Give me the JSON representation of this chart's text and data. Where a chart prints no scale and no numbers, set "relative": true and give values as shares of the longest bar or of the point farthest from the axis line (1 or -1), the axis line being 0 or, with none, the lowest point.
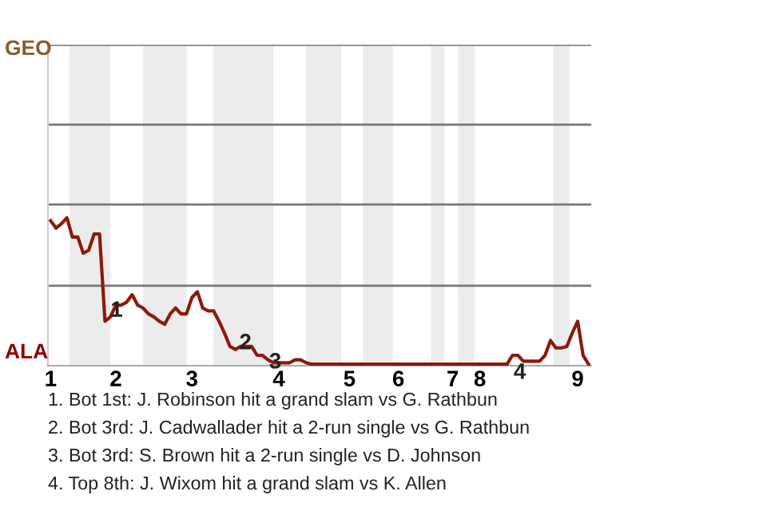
{
  "chart_data": {
    "type": "line",
    "relative": true,
    "categories": [
      "1",
      null,
      null,
      null,
      null,
      null,
      null,
      null,
      null,
      null,
      null,
      null,
      "2",
      null,
      null,
      null,
      null,
      null,
      null,
      null,
      null,
      null,
      null,
      null,
      null,
      null,
      "3",
      null,
      null,
      null,
      null,
      null,
      null,
      null,
      null,
      null,
      null,
      null,
      null,
      null,
      null,
      null,
      "4",
      null,
      null,
      null,
      null,
      null,
      null,
      null,
      null,
      null,
      null,
      null,
      null,
      "5",
      null,
      null,
      null,
      null,
      null,
      null,
      null,
      null,
      "6",
      null,
      null,
      null,
      null,
      null,
      null,
      null,
      null,
      null,
      "7",
      null,
      null,
      null,
      null,
      "8",
      null,
      null,
      null,
      null,
      null,
      null,
      null,
      null,
      null,
      null,
      null,
      null,
      null,
      null,
      null,
      null,
      null,
      "9",
      null,
      null
    ],
    "marker": "none",
    "line_style": "solid",
    "ref_lines": [
      {
        "axis": "y",
        "value": 0.54,
        "color": "#777777"
      },
      {
        "axis": "y",
        "value": 1.09,
        "color": "#777777"
      },
      {
        "axis": "y",
        "value": 1.63,
        "color": "#777777"
      },
      {
        "axis": "y",
        "value": 2.17,
        "color": "#777777"
      }
    ],
    "series": [
      {
        "color": "#8b1a0a",
        "values": [
          0.98,
          0.93,
          0.96,
          1,
          0.87,
          0.87,
          0.76,
          0.78,
          0.89,
          0.89,
          0.3,
          0.33,
          0.41,
          0.41,
          0.43,
          0.48,
          0.41,
          0.39,
          0.35,
          0.33,
          0.3,
          0.28,
          0.35,
          0.39,
          0.35,
          0.35,
          0.46,
          0.5,
          0.39,
          0.37,
          0.37,
          0.3,
          0.22,
          0.13,
          0.11,
          0.13,
          0.13,
          0.13,
          0.07,
          0.07,
          0.04,
          0.02,
          0.02,
          0.02,
          0.02,
          0.04,
          0.04,
          0.02,
          0.01,
          0.01,
          0.01,
          0.01,
          0.01,
          0.01,
          0.01,
          0.01,
          0.01,
          0.01,
          0.01,
          0.01,
          0.01,
          0.01,
          0.01,
          0.01,
          0.01,
          0.01,
          0.01,
          0.01,
          0.01,
          0.01,
          0.01,
          0.01,
          0.01,
          0.01,
          0.01,
          0.01,
          0.01,
          0.01,
          0.01,
          0.01,
          0.01,
          0.01,
          0.01,
          0.01,
          0.01,
          0.07,
          0.07,
          0.03,
          0.03,
          0.03,
          0.03,
          0.07,
          0.17,
          0.12,
          0.12,
          0.13,
          0.22,
          0.3,
          0.07,
          0.01
        ]
      }
    ],
    "annotations": [
      "GEO",
      "ALA",
      "1",
      "2",
      "3",
      "4",
      "1. Bot 1st: J. Robinson hit a grand slam vs G. Rathbun",
      "2. Bot 3rd: J. Cadwallader hit a 2-run single vs G. Rathbun",
      "3. Bot 3rd: S. Brown hit a 2-run single vs D. Johnson",
      "4. Top 8th: J. Wixom hit a grand slam vs K. Allen"
    ]
  }
}
